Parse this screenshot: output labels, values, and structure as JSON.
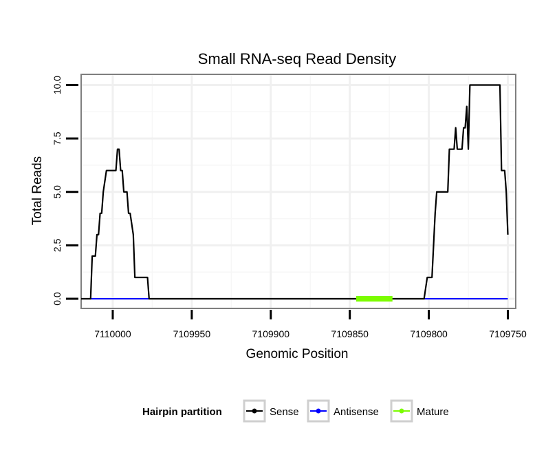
{
  "chart_data": {
    "type": "line",
    "title": "Small RNA-seq Read Density",
    "xlabel": "Genomic Position",
    "ylabel": "Total Reads",
    "xlim": [
      7110020,
      7109745
    ],
    "ylim": [
      -0.45,
      10.5
    ],
    "x_reversed": true,
    "x_ticks": [
      7110000,
      7109950,
      7109900,
      7109850,
      7109800,
      7109750
    ],
    "x_tick_labels": [
      "7110000",
      "7109950",
      "7109900",
      "7109850",
      "7109800",
      "7109750"
    ],
    "y_ticks": [
      0,
      2.5,
      5,
      7.5,
      10
    ],
    "y_tick_labels": [
      "0.0",
      "2.5",
      "5.0",
      "7.5",
      "10.0"
    ],
    "grid": true,
    "legend": {
      "title": "Hairpin partition",
      "position": "bottom",
      "entries": [
        {
          "name": "Sense",
          "color": "#000000"
        },
        {
          "name": "Antisense",
          "color": "#0000ff"
        },
        {
          "name": "Mature",
          "color": "#7cfc00"
        }
      ]
    },
    "series": [
      {
        "name": "Antisense",
        "color": "#0000ff",
        "x": [
          7110020,
          7109750
        ],
        "y": [
          0,
          0
        ]
      },
      {
        "name": "Sense",
        "color": "#000000",
        "x": [
          7110020,
          7110014,
          7110013,
          7110011,
          7110010,
          7110009,
          7110008,
          7110007,
          7110006,
          7110004,
          7110001,
          7110000,
          7109998,
          7109997,
          7109996,
          7109995,
          7109994,
          7109993,
          7109991,
          7109990,
          7109989,
          7109987,
          7109986,
          7109983,
          7109981,
          7109978,
          7109977,
          7109870,
          7109860,
          7109850,
          7109845,
          7109840,
          7109835,
          7109830,
          7109825,
          7109820,
          7109815,
          7109810,
          7109805,
          7109803,
          7109801,
          7109798,
          7109796,
          7109795,
          7109790,
          7109788,
          7109787,
          7109784,
          7109783,
          7109782,
          7109779,
          7109778,
          7109777,
          7109776,
          7109775,
          7109774,
          7109772,
          7109760,
          7109755,
          7109754,
          7109752,
          7109751,
          7109750
        ],
        "y": [
          0,
          0,
          2,
          2,
          3,
          3,
          4,
          4,
          5,
          6,
          6,
          6,
          6,
          7,
          7,
          6,
          6,
          5,
          5,
          4,
          4,
          3,
          1,
          1,
          1,
          1,
          0,
          0,
          0,
          0,
          0,
          0,
          0,
          0,
          0,
          0,
          0,
          0,
          0,
          0,
          1,
          1,
          4,
          5,
          5,
          5,
          7,
          7,
          8,
          7,
          7,
          8,
          8,
          9,
          7,
          10,
          10,
          10,
          10,
          6,
          6,
          5,
          3
        ]
      },
      {
        "name": "Mature",
        "color": "#7cfc00",
        "x": [
          7109846,
          7109823
        ],
        "y": [
          0,
          0
        ]
      }
    ]
  }
}
